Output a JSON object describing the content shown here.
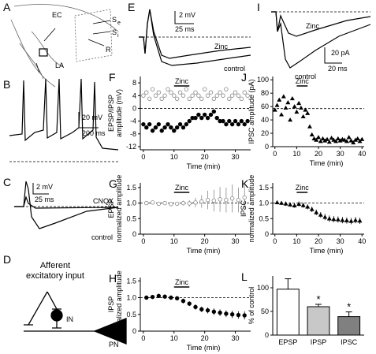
{
  "panels": {
    "A": {
      "letter": "A",
      "labels": {
        "ec": "EC",
        "se": "S",
        "se_sub": "e",
        "si": "S",
        "si_sub": "i",
        "r": "R",
        "la": "LA"
      }
    },
    "B": {
      "letter": "B",
      "scale_y": "20 mV",
      "scale_x": "200 ms"
    },
    "C": {
      "letter": "C",
      "scale_y": "2 mV",
      "scale_x": "25 ms",
      "labels": [
        "CNQX",
        "control"
      ]
    },
    "D": {
      "letter": "D",
      "input": [
        "Afferent",
        "excitatory input"
      ],
      "in": "IN",
      "pn": "PN"
    },
    "E": {
      "letter": "E",
      "scale_y": "2 mV",
      "scale_x": "25 ms",
      "labels": [
        "Zinc",
        "control"
      ]
    },
    "I": {
      "letter": "I",
      "scale_y": "20 pA",
      "scale_x": "20 ms",
      "labels": [
        "Zinc",
        "control"
      ]
    },
    "F": {
      "type": "scatter",
      "letter": "F",
      "ylabel": [
        "EPSP/IPSP",
        "amplitude (mV)"
      ],
      "xlabel": "Time (min)",
      "xlim": [
        -1,
        35
      ],
      "ylim": [
        -13,
        10
      ],
      "xticks": [
        0,
        10,
        20,
        30
      ],
      "yticks": [
        8,
        4,
        0,
        -4,
        -8,
        -12
      ],
      "reference_line": 0,
      "application": {
        "label": "Zinc",
        "start": 10,
        "end": 15
      },
      "x": [
        0,
        1,
        2,
        3,
        4,
        5,
        6,
        7,
        8,
        9,
        10,
        11,
        12,
        13,
        14,
        15,
        16,
        17,
        18,
        19,
        20,
        21,
        22,
        23,
        24,
        25,
        26,
        27,
        28,
        29,
        30,
        31,
        32,
        33,
        34
      ],
      "series": [
        {
          "marker": "circle-open",
          "color": "#888888",
          "values": [
            4,
            5,
            3,
            6,
            4,
            5,
            3,
            4,
            6,
            5,
            4,
            3,
            5,
            4,
            6,
            3,
            4,
            5,
            4,
            3,
            6,
            4,
            5,
            3,
            4,
            5,
            4,
            6,
            3,
            4,
            5,
            4,
            3,
            5,
            4
          ]
        },
        {
          "marker": "circle",
          "color": "#000000",
          "values": [
            -5,
            -6,
            -5,
            -7,
            -6,
            -5,
            -7,
            -6,
            -5,
            -6,
            -7,
            -6,
            -5,
            -6,
            -5,
            -4,
            -3,
            -3,
            -2,
            -3,
            -2,
            -3,
            -2,
            -1,
            -3,
            -4,
            -4,
            -5,
            -4,
            -5,
            -4,
            -5,
            -4,
            -5,
            -4
          ]
        }
      ]
    },
    "G": {
      "type": "scatter",
      "letter": "G",
      "ylabel": [
        "EPSP",
        "normalized amplitude"
      ],
      "xlabel": "Time (min)",
      "xlim": [
        -1,
        35
      ],
      "ylim": [
        0,
        1.65
      ],
      "xticks": [
        0,
        10,
        20,
        30
      ],
      "yticks": [
        0,
        0.5,
        {
          "value": 1,
          "label": "1.0"
        },
        1.5
      ],
      "reference_line": 1,
      "application": {
        "label": "Zinc",
        "start": 10,
        "end": 15
      },
      "x": [
        1,
        3,
        5,
        7,
        9,
        11,
        13,
        15,
        17,
        19,
        21,
        23,
        25,
        27,
        29,
        31,
        33
      ],
      "series": [
        {
          "marker": "circle-open",
          "color": "#888888",
          "values": [
            1,
            1.02,
            0.98,
            1,
            0.97,
            0.98,
            1,
            0.99,
            1.02,
            1.05,
            1.1,
            1.08,
            1.12,
            1.1,
            1.15,
            1.1,
            1.18
          ],
          "errors": [
            0.04,
            0.05,
            0.05,
            0.04,
            0.06,
            0.06,
            0.08,
            0.1,
            0.15,
            0.2,
            0.3,
            0.35,
            0.4,
            0.4,
            0.45,
            0.4,
            0.4
          ]
        }
      ]
    },
    "H": {
      "type": "scatter",
      "letter": "H",
      "ylabel": [
        "IPSP",
        "normalized amplitude"
      ],
      "xlabel": "Time (min)",
      "xlim": [
        -1,
        35
      ],
      "ylim": [
        0,
        1.6
      ],
      "xticks": [
        0,
        10,
        20,
        30
      ],
      "yticks": [
        0,
        0.5,
        {
          "value": 1,
          "label": "1.0"
        },
        1.5
      ],
      "reference_line": 1,
      "application": {
        "label": "Zinc",
        "start": 10,
        "end": 15
      },
      "x": [
        1,
        3,
        5,
        7,
        9,
        11,
        13,
        15,
        17,
        19,
        21,
        23,
        25,
        27,
        29,
        31,
        33
      ],
      "series": [
        {
          "marker": "circle",
          "color": "#000000",
          "values": [
            1,
            1.02,
            1.05,
            1.03,
            1,
            0.98,
            0.9,
            0.82,
            0.72,
            0.65,
            0.62,
            0.58,
            0.55,
            0.52,
            0.5,
            0.48,
            0.47
          ],
          "errors": [
            0.04,
            0.05,
            0.05,
            0.05,
            0.06,
            0.06,
            0.07,
            0.07,
            0.08,
            0.08,
            0.09,
            0.1,
            0.1,
            0.1,
            0.11,
            0.11,
            0.12
          ]
        }
      ]
    },
    "J": {
      "type": "scatter",
      "letter": "J",
      "ylabel": [
        "IPSC amplitude (pA)"
      ],
      "xlabel": "Time (min)",
      "xlim": [
        -1,
        41
      ],
      "ylim": [
        0,
        105
      ],
      "xticks": [
        0,
        10,
        20,
        30,
        40
      ],
      "yticks": [
        0,
        20,
        40,
        60,
        80,
        100
      ],
      "reference_line": 57,
      "application": {
        "label": "Zinc",
        "start": 10,
        "end": 15
      },
      "x": [
        0,
        1,
        2,
        3,
        4,
        5,
        6,
        7,
        8,
        9,
        10,
        11,
        12,
        13,
        14,
        15,
        16,
        17,
        18,
        19,
        20,
        21,
        22,
        23,
        24,
        25,
        26,
        27,
        28,
        29,
        30,
        31,
        32,
        33,
        34,
        35,
        36,
        37,
        38,
        39,
        40
      ],
      "series": [
        {
          "marker": "triangle",
          "color": "#000000",
          "values": [
            55,
            62,
            70,
            48,
            75,
            58,
            66,
            40,
            72,
            60,
            52,
            65,
            58,
            45,
            55,
            50,
            30,
            18,
            12,
            10,
            14,
            8,
            12,
            9,
            11,
            7,
            13,
            10,
            8,
            12,
            9,
            11,
            10,
            8,
            14,
            9,
            6,
            10,
            12,
            8,
            11
          ]
        }
      ]
    },
    "K": {
      "type": "scatter",
      "letter": "K",
      "ylabel": [
        "IPSC",
        "normalized amplitude"
      ],
      "xlabel": "Time (min)",
      "xlim": [
        -1,
        41
      ],
      "ylim": [
        0,
        1.65
      ],
      "xticks": [
        0,
        10,
        20,
        30,
        40
      ],
      "yticks": [
        0,
        0.5,
        {
          "value": 1,
          "label": "1.0"
        },
        1.5
      ],
      "reference_line": 1,
      "application": {
        "label": "Zinc",
        "start": 10,
        "end": 15
      },
      "x": [
        1,
        3,
        5,
        7,
        9,
        11,
        13,
        15,
        17,
        19,
        21,
        23,
        25,
        27,
        29,
        31,
        33,
        35,
        37,
        39
      ],
      "series": [
        {
          "marker": "triangle",
          "color": "#000000",
          "values": [
            1.02,
            1,
            0.98,
            0.95,
            0.92,
            0.97,
            0.93,
            0.88,
            0.8,
            0.7,
            0.62,
            0.55,
            0.5,
            0.48,
            0.47,
            0.45,
            0.44,
            0.42,
            0.45,
            0.43
          ],
          "errors": [
            0.06,
            0.06,
            0.07,
            0.07,
            0.07,
            0.08,
            0.08,
            0.08,
            0.09,
            0.09,
            0.09,
            0.1,
            0.1,
            0.1,
            0.1,
            0.1,
            0.1,
            0.1,
            0.1,
            0.1
          ]
        }
      ]
    },
    "L": {
      "type": "bar",
      "letter": "L",
      "ylabel": [
        "% of control"
      ],
      "categories": [
        "EPSP",
        "IPSP",
        "IPSC"
      ],
      "values": [
        97,
        60,
        39
      ],
      "errors": [
        22,
        5,
        10
      ],
      "colors": [
        "#ffffff",
        "#c8c8c8",
        "#808080"
      ],
      "significance": [
        null,
        "*",
        "*"
      ],
      "ylim": [
        0,
        125
      ],
      "yticks": [
        0,
        50,
        100
      ]
    }
  }
}
